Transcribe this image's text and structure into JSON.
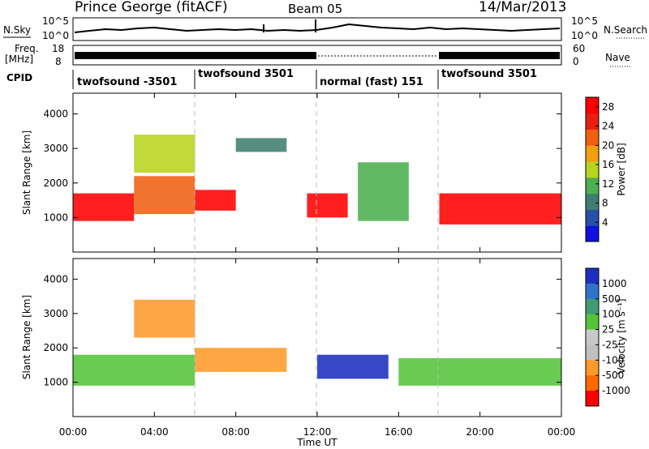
{
  "header": {
    "title": "Prince George (fitACF)",
    "beam": "Beam 05",
    "date": "14/Mar/2013"
  },
  "noise_panel": {
    "left_label": "N.Sky",
    "left_ticks": [
      "10^5",
      "10^0"
    ],
    "right_ticks": [
      "10^5",
      "10^0"
    ],
    "right_label": "N.Search"
  },
  "freq_panel": {
    "label_top": "Freq.",
    "label_units": "[MHz]",
    "left_ticks": [
      "18",
      "8"
    ],
    "right_ticks": [
      "60",
      "0"
    ],
    "right_label": "Nave"
  },
  "cpid_panel": {
    "label": "CPID",
    "segments": [
      {
        "label": "twofsound -3501",
        "start_hour": 0
      },
      {
        "label": "twofsound 3501",
        "start_hour": 6
      },
      {
        "label": "normal (fast) 151",
        "start_hour": 12
      },
      {
        "label": "twofsound 3501",
        "start_hour": 18
      }
    ]
  },
  "colors": {
    "power_scale": [
      "#1010e0",
      "#2a4fa8",
      "#3f7f6f",
      "#4caf50",
      "#b8d41e",
      "#f0a010",
      "#f06010",
      "#e82010",
      "#ff0000"
    ],
    "velocity_scale": [
      "#1e2fbf",
      "#2f73c9",
      "#3e9b76",
      "#54c43a",
      "#c8c8c8",
      "#c0c0c0",
      "#ff9a2a",
      "#ff6a00",
      "#ff0000"
    ]
  },
  "chart_data": [
    {
      "type": "heatmap",
      "title": "",
      "ylabel": "Slant Range [km]",
      "ylim": [
        0,
        4600
      ],
      "y_ticks": [
        "1000",
        "2000",
        "3000",
        "4000"
      ],
      "xlabel": "Time UT",
      "x_ticks": [
        "00:00",
        "04:00",
        "08:00",
        "12:00",
        "16:00",
        "20:00",
        "00:00"
      ],
      "colorbar": {
        "label": "Power [dB]",
        "ticks": [
          "4",
          "8",
          "12",
          "16",
          "20",
          "24",
          "28"
        ],
        "range": [
          0,
          30
        ]
      },
      "echo_regions": [
        {
          "hours": [
            0,
            3
          ],
          "range_km": [
            900,
            1700
          ],
          "power_db": 28
        },
        {
          "hours": [
            3,
            6
          ],
          "range_km": [
            1100,
            2200
          ],
          "power_db": 20
        },
        {
          "hours": [
            3,
            6
          ],
          "range_km": [
            2300,
            3400
          ],
          "power_db": 16
        },
        {
          "hours": [
            6,
            8
          ],
          "range_km": [
            1200,
            1800
          ],
          "power_db": 28
        },
        {
          "hours": [
            8,
            10.5
          ],
          "range_km": [
            2900,
            3300
          ],
          "power_db": 8
        },
        {
          "hours": [
            11.5,
            13.5
          ],
          "range_km": [
            1000,
            1700
          ],
          "power_db": 28
        },
        {
          "hours": [
            14,
            16.5
          ],
          "range_km": [
            900,
            2600
          ],
          "power_db": 12
        },
        {
          "hours": [
            18,
            24
          ],
          "range_km": [
            800,
            1700
          ],
          "power_db": 28
        }
      ]
    },
    {
      "type": "heatmap",
      "title": "",
      "ylabel": "Slant Range [km]",
      "ylim": [
        0,
        4600
      ],
      "y_ticks": [
        "1000",
        "2000",
        "3000",
        "4000"
      ],
      "xlabel": "Time UT",
      "x_ticks": [
        "00:00",
        "04:00",
        "08:00",
        "12:00",
        "16:00",
        "20:00",
        "00:00"
      ],
      "colorbar": {
        "label": "Velocity [m s⁻¹]",
        "ticks": [
          "1000",
          "500",
          "100",
          "25",
          "-25",
          "-100",
          "-500",
          "-1000"
        ],
        "range": [
          -1000,
          1000
        ]
      },
      "echo_regions": [
        {
          "hours": [
            0,
            6
          ],
          "range_km": [
            900,
            1800
          ],
          "velocity_ms": 0
        },
        {
          "hours": [
            3,
            6
          ],
          "range_km": [
            2300,
            3400
          ],
          "velocity_ms": -300
        },
        {
          "hours": [
            6,
            10.5
          ],
          "range_km": [
            1300,
            2000
          ],
          "velocity_ms": -400
        },
        {
          "hours": [
            12,
            15.5
          ],
          "range_km": [
            1100,
            1800
          ],
          "velocity_ms": 600
        },
        {
          "hours": [
            16,
            24
          ],
          "range_km": [
            900,
            1700
          ],
          "velocity_ms": 0
        }
      ]
    }
  ]
}
